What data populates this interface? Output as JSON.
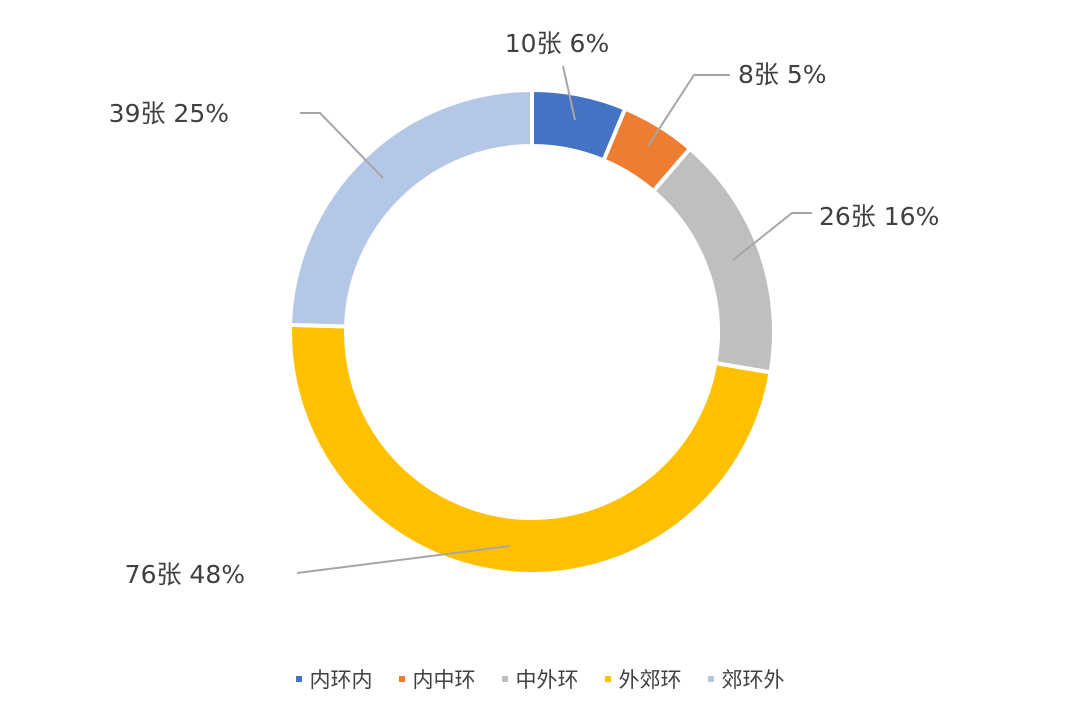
{
  "chart_data": {
    "type": "pie",
    "variant": "donut",
    "title": "",
    "unit": "张",
    "categories": [
      "内环内",
      "内中环",
      "中外环",
      "外郊环",
      "郊环外"
    ],
    "values": [
      10,
      8,
      26,
      76,
      39
    ],
    "percents": [
      6,
      5,
      16,
      48,
      25
    ],
    "labels": [
      "10张 6%",
      "8张 5%",
      "26张 16%",
      "76张 48%",
      "39张 25%"
    ],
    "colors": [
      "#4472C4",
      "#ED7D31",
      "#BFBFBF",
      "#FFC000",
      "#B4C7E7"
    ],
    "start_angle": "12 o'clock",
    "direction": "clockwise",
    "legend_position": "bottom"
  }
}
